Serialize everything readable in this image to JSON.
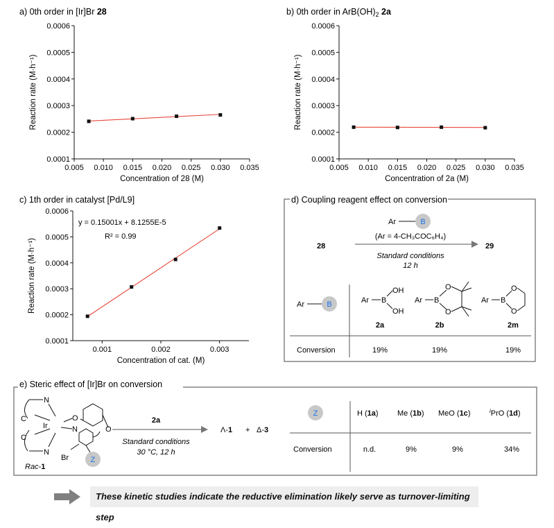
{
  "chart_data": [
    {
      "type": "scatter",
      "panel": "a",
      "title": "a) 0th order in [Ir]Br 28",
      "xlabel": "Concentration of 28 (M)",
      "ylabel": "Reaction rate (M·h⁻¹)",
      "xlim": [
        0.005,
        0.035
      ],
      "ylim": [
        0.0001,
        0.0006
      ],
      "xticks": [
        "0.005",
        "0.010",
        "0.015",
        "0.020",
        "0.025",
        "0.030",
        "0.035"
      ],
      "yticks": [
        "0.0001",
        "0.0002",
        "0.0003",
        "0.0004",
        "0.0005",
        "0.0006"
      ],
      "x": [
        0.0075,
        0.015,
        0.0225,
        0.03
      ],
      "y": [
        0.000241,
        0.000251,
        0.00026,
        0.000265
      ],
      "fit": {
        "x": [
          0.0075,
          0.03
        ],
        "y": [
          0.000242,
          0.000267
        ]
      }
    },
    {
      "type": "scatter",
      "panel": "b",
      "title": "b) 0th order in ArB(OH)2 2a",
      "xlabel": "Concentration of 2a (M)",
      "ylabel": "Reaction rate (M·h⁻¹)",
      "xlim": [
        0.005,
        0.035
      ],
      "ylim": [
        0.0001,
        0.0006
      ],
      "xticks": [
        "0.005",
        "0.010",
        "0.015",
        "0.020",
        "0.025",
        "0.030",
        "0.035"
      ],
      "yticks": [
        "0.0001",
        "0.0002",
        "0.0003",
        "0.0004",
        "0.0005",
        "0.0006"
      ],
      "x": [
        0.0075,
        0.015,
        0.0225,
        0.03
      ],
      "y": [
        0.000219,
        0.000218,
        0.000219,
        0.000217
      ],
      "fit": {
        "x": [
          0.0075,
          0.03
        ],
        "y": [
          0.000219,
          0.000218
        ]
      }
    },
    {
      "type": "scatter",
      "panel": "c",
      "title": "c) 1th order in catalyst [Pd/L9]",
      "xlabel": "Concentration of cat. (M)",
      "ylabel": "Reaction rate (M·h⁻¹)",
      "xlim": [
        0.0005,
        0.0035
      ],
      "ylim": [
        0.0001,
        0.0006
      ],
      "xticks": [
        "0.001",
        "0.002",
        "0.003"
      ],
      "xtickvals": [
        0.001,
        0.002,
        0.003
      ],
      "yticks": [
        "0.0001",
        "0.0002",
        "0.0003",
        "0.0004",
        "0.0005",
        "0.0006"
      ],
      "x": [
        0.00075,
        0.0015,
        0.00225,
        0.003
      ],
      "y": [
        0.000194,
        0.000307,
        0.000413,
        0.000534
      ],
      "fit": {
        "x": [
          0.00075,
          0.003
        ],
        "y": [
          0.000193,
          0.000531
        ]
      },
      "annotation": [
        "y = 0.15001x + 8.1255E-5",
        "R² = 0.99"
      ]
    }
  ],
  "panel_d": {
    "title": "d) Coupling reagent effect on conversion",
    "reagent": "Ar—B",
    "conditions": "(Ar = 4-CH₃COC₆H₄)",
    "std": "Standard conditions",
    "time": "12 h",
    "start": "28",
    "product": "29",
    "compounds": [
      "2a",
      "2b",
      "2m"
    ],
    "row_label": "Conversion",
    "values": [
      "19%",
      "19%",
      "19%"
    ]
  },
  "panel_e": {
    "title": "e) Steric effect of [Ir]Br on conversion",
    "reagent": "2a",
    "std": "Standard conditions",
    "temp": "30 °C, 12 h",
    "complex": "Rac-1",
    "products": [
      "Λ-1",
      "+",
      "Δ-3"
    ],
    "headers": [
      "H (1a)",
      "Me (1b)",
      "MeO (1c)",
      "ⁱPrO (1d)"
    ],
    "row_label": "Conversion",
    "values": [
      "n.d.",
      "9%",
      "9%",
      "34%"
    ],
    "z": "Z"
  },
  "conclusion": "These kinetic studies indicate the reductive elimination likely serve as turnover-limiting step",
  "colors": {
    "fit": "#e8473a",
    "point": "#111111",
    "badge": "#c8c8c8",
    "badge_text": "#1a73e8"
  }
}
